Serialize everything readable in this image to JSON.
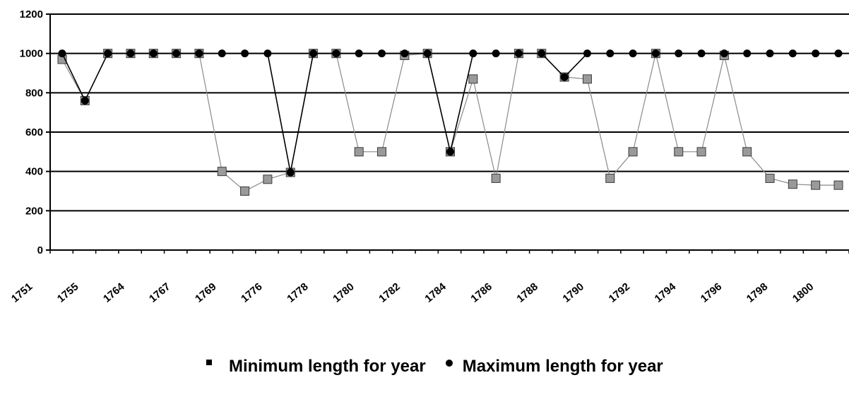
{
  "chart_data": {
    "type": "line",
    "title": "",
    "xlabel": "",
    "ylabel": "",
    "ylim": [
      0,
      1200
    ],
    "yticks": [
      0,
      200,
      400,
      600,
      800,
      1000,
      1200
    ],
    "grid": "horizontal",
    "legend_position": "bottom",
    "x_tick_labels": [
      "1751",
      "1755",
      "1764",
      "1767",
      "1769",
      "1776",
      "1778",
      "1780",
      "1782",
      "1784",
      "1786",
      "1788",
      "1790",
      "1792",
      "1794",
      "1796",
      "1798",
      "1800"
    ],
    "series": [
      {
        "name": "Minimum length for year",
        "marker": "square",
        "color": "#999999",
        "values": [
          970,
          760,
          1000,
          1000,
          1000,
          1000,
          1000,
          400,
          300,
          360,
          395,
          1000,
          1000,
          500,
          500,
          990,
          1000,
          500,
          870,
          365,
          1000,
          1000,
          880,
          870,
          365,
          500,
          1000,
          500,
          500,
          990,
          500,
          365,
          335,
          330,
          330
        ]
      },
      {
        "name": "Maximum length for year",
        "marker": "circle",
        "color": "#000000",
        "values": [
          1000,
          760,
          1000,
          1000,
          1000,
          1000,
          1000,
          1000,
          1000,
          1000,
          395,
          1000,
          1000,
          1000,
          1000,
          1000,
          1000,
          500,
          1000,
          1000,
          1000,
          1000,
          880,
          1000,
          1000,
          1000,
          1000,
          1000,
          1000,
          1000,
          1000,
          1000,
          1000,
          1000,
          1000
        ]
      }
    ]
  },
  "legend": {
    "min_label": "Minimum length for year",
    "max_label": "Maximum length for year"
  }
}
